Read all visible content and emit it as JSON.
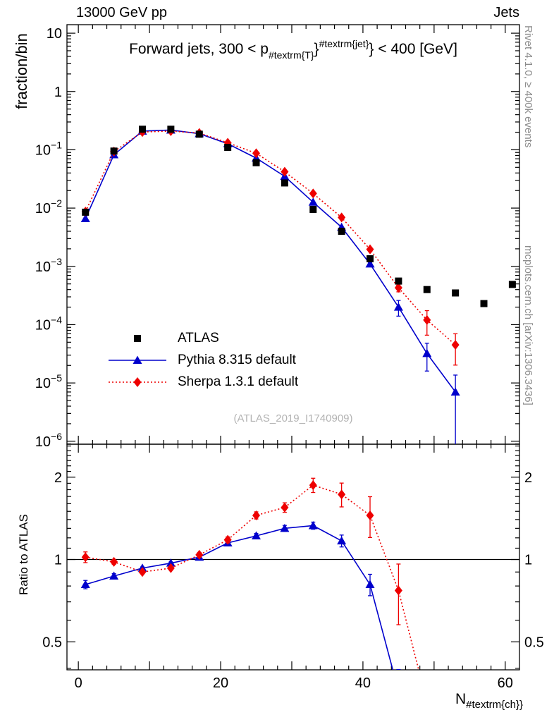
{
  "header": {
    "left": "13000 GeV pp",
    "right": "Jets"
  },
  "title_parts": {
    "pre": "Forward jets, 300 < p",
    "sub": "#textrm{T}",
    "mid": "}",
    "sup": "#textrm{jet}",
    "post": "} < 400 [GeV]"
  },
  "xlabel_parts": {
    "main": "N",
    "sub": "#textrm{ch}}"
  },
  "side_notes": {
    "top": "Rivet 4.1.0, ≥ 400k events",
    "bottom": "mcplots.cern.ch [arXiv:1306.3436]"
  },
  "watermark": "(ATLAS_2019_I1740909)",
  "colors": {
    "atlas": "#000000",
    "pythia": "#0000cc",
    "sherpa": "#ee0000",
    "frame": "#000000",
    "note_gray": "#8c8c8c",
    "watermark_gray": "#b3b3b3"
  },
  "chart_data": [
    {
      "type": "scatter",
      "panel": "main",
      "ylabel": "fraction/bin",
      "yscale": "log",
      "xlim": [
        -1.6,
        62
      ],
      "ylim": [
        8.9e-07,
        14
      ],
      "x_ticks": [
        {
          "value": 0,
          "label": "0"
        },
        {
          "value": 20,
          "label": "20"
        },
        {
          "value": 40,
          "label": "40"
        },
        {
          "value": 60,
          "label": "60"
        }
      ],
      "y_ticks": [
        {
          "value": 10,
          "base": "10",
          "sup": ""
        },
        {
          "value": 1,
          "base": "1",
          "sup": ""
        },
        {
          "value": 0.1,
          "base": "10",
          "sup": "−1"
        },
        {
          "value": 0.01,
          "base": "10",
          "sup": "−2"
        },
        {
          "value": 0.001,
          "base": "10",
          "sup": "−3"
        },
        {
          "value": 0.0001,
          "base": "10",
          "sup": "−4"
        },
        {
          "value": 1e-05,
          "base": "10",
          "sup": "−5"
        },
        {
          "value": 1e-06,
          "base": "10",
          "sup": "−6"
        }
      ],
      "series": [
        {
          "name": "ATLAS",
          "marker": "square",
          "color": "#000000",
          "line": "none",
          "x": [
            1,
            5,
            9,
            13,
            17,
            21,
            25,
            29,
            33,
            37,
            41,
            45,
            49,
            53,
            57,
            61
          ],
          "y": [
            0.0085,
            0.095,
            0.225,
            0.225,
            0.185,
            0.11,
            0.06,
            0.027,
            0.0095,
            0.004,
            0.00135,
            0.00056,
            0.0004,
            0.00035,
            0.00023,
            0.00049
          ],
          "err": [
            0,
            0,
            0,
            0,
            0,
            0,
            0,
            0,
            0,
            0,
            0,
            0.05,
            0.06,
            0.06,
            0.08,
            0.08
          ]
        },
        {
          "name": "Pythia 8.315 default",
          "marker": "triangle",
          "color": "#0000cc",
          "line": "solid",
          "x": [
            1,
            5,
            9,
            13,
            17,
            21,
            25,
            29,
            33,
            37,
            41,
            45,
            49,
            53
          ],
          "y": [
            0.0066,
            0.082,
            0.209,
            0.218,
            0.189,
            0.127,
            0.072,
            0.035,
            0.0126,
            0.0047,
            0.0011,
            0.0002,
            3.2e-05,
            7e-06
          ],
          "err": [
            0,
            0,
            0,
            0,
            0,
            0,
            0,
            0,
            0,
            0,
            0.06,
            0.3,
            0.5,
            0.95
          ]
        },
        {
          "name": "Sherpa 1.3.1 default",
          "marker": "diamond",
          "color": "#ee0000",
          "line": "dotted",
          "x": [
            1,
            5,
            9,
            13,
            17,
            21,
            25,
            29,
            33,
            37,
            41,
            45,
            49,
            53
          ],
          "y": [
            0.0087,
            0.093,
            0.202,
            0.209,
            0.194,
            0.132,
            0.087,
            0.042,
            0.0178,
            0.0069,
            0.00196,
            0.00043,
            0.00012,
            4.5e-05
          ],
          "err": [
            0,
            0,
            0,
            0,
            0,
            0,
            0,
            0,
            0,
            0.05,
            0.08,
            0.15,
            0.45,
            0.55
          ]
        }
      ]
    },
    {
      "type": "ratio",
      "panel": "ratio",
      "ylabel": "Ratio to ATLAS",
      "yscale": "log",
      "xlim": [
        -1.6,
        62
      ],
      "ylim": [
        0.395,
        2.64
      ],
      "reference_line": 1,
      "y_ticks": [
        {
          "value": 0.5,
          "label": "0.5"
        },
        {
          "value": 1,
          "label": "1"
        },
        {
          "value": 2,
          "label": "2"
        }
      ],
      "y_minor": [
        0.4,
        0.6,
        0.7,
        0.8,
        0.9,
        1.1,
        1.2,
        1.3,
        1.4,
        1.5,
        1.6,
        1.7,
        1.8,
        1.9,
        2.1,
        2.2,
        2.3,
        2.4,
        2.5,
        2.6
      ],
      "series": [
        {
          "name": "Pythia 8.315 default",
          "marker": "triangle",
          "color": "#0000cc",
          "line": "solid",
          "x": [
            1,
            5,
            9,
            13,
            17,
            21,
            25,
            29,
            33,
            37,
            41,
            45
          ],
          "y": [
            0.81,
            0.87,
            0.93,
            0.97,
            1.02,
            1.15,
            1.22,
            1.3,
            1.33,
            1.17,
            0.81,
            0.33
          ],
          "err": [
            0.035,
            0.02,
            0.01,
            0.01,
            0.01,
            0.015,
            0.02,
            0.025,
            0.03,
            0.05,
            0.09,
            0.2
          ]
        },
        {
          "name": "Sherpa 1.3.1 default",
          "marker": "diamond",
          "color": "#ee0000",
          "line": "dotted",
          "x": [
            1,
            5,
            9,
            13,
            17,
            21,
            25,
            29,
            33,
            37,
            41,
            45,
            49
          ],
          "y": [
            1.02,
            0.98,
            0.9,
            0.93,
            1.04,
            1.18,
            1.45,
            1.55,
            1.87,
            1.73,
            1.45,
            0.77,
            0.3
          ],
          "err": [
            0.045,
            0.02,
            0.015,
            0.015,
            0.02,
            0.025,
            0.03,
            0.04,
            0.06,
            0.1,
            0.17,
            0.25,
            0.3
          ]
        }
      ]
    }
  ]
}
